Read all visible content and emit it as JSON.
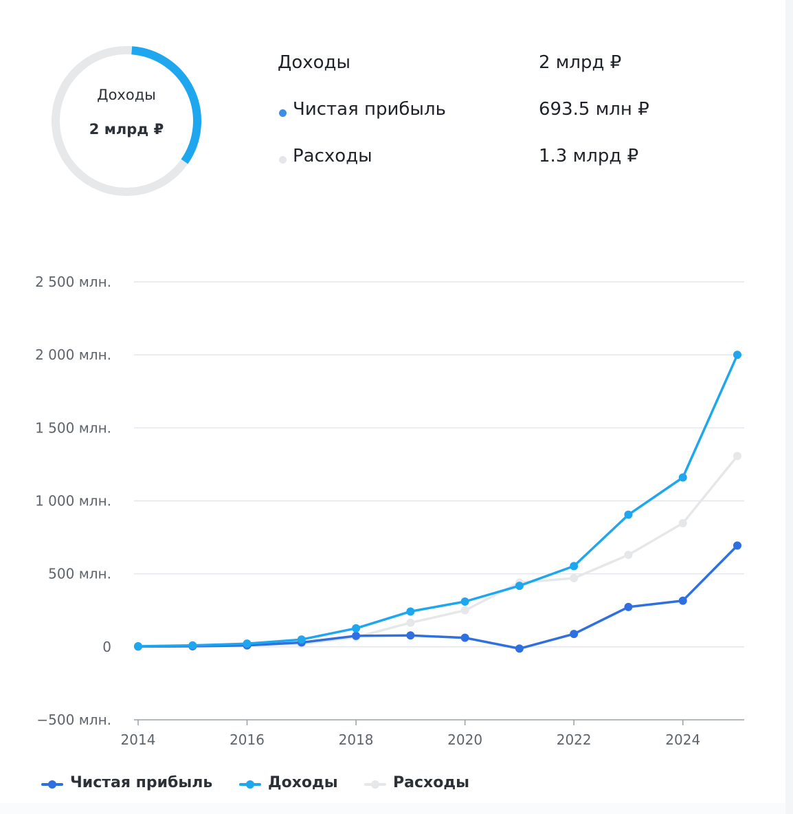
{
  "summary": {
    "donut_label": "Доходы",
    "donut_value": "2 млрд ₽",
    "donut_share": 0.347,
    "rows": [
      {
        "label": "Доходы",
        "value": "2 млрд ₽",
        "color": ""
      },
      {
        "label": "Чистая прибыль",
        "value": "693.5 млн ₽",
        "color": "#3d8fe6"
      },
      {
        "label": "Расходы",
        "value": "1.3 млрд ₽",
        "color": "#e4e6e9"
      }
    ]
  },
  "colors": {
    "net_profit": "#2f6fdf",
    "income": "#1ea6ef",
    "expenses": "#e6e7e9",
    "grid": "#e3e6ea",
    "donut_track": "#e7e8ea",
    "donut_fill": "#1ea6ef"
  },
  "chart_data": {
    "type": "line",
    "x": [
      2014,
      2015,
      2016,
      2017,
      2018,
      2019,
      2020,
      2021,
      2022,
      2023,
      2024,
      2025
    ],
    "xlim": [
      2014,
      2025
    ],
    "x_ticks": [
      2014,
      2016,
      2018,
      2020,
      2022,
      2024
    ],
    "x_tick_labels": [
      "2014",
      "2016",
      "2018",
      "2020",
      "2022",
      "2024"
    ],
    "ylim": [
      -500,
      2500
    ],
    "y_ticks": [
      -500,
      0,
      500,
      1000,
      1500,
      2000,
      2500
    ],
    "y_tick_labels": [
      "−500 млн.",
      "0",
      "500 млн.",
      "1 000 млн.",
      "1 500 млн.",
      "2 000 млн.",
      "2 500 млн."
    ],
    "grid": true,
    "legend_position": "bottom-left",
    "series": [
      {
        "name": "Чистая прибыль",
        "key": "net_profit",
        "values": [
          2,
          4,
          10,
          30,
          75,
          78,
          62,
          -12,
          88,
          273,
          316,
          694
        ]
      },
      {
        "name": "Доходы",
        "key": "income",
        "values": [
          4,
          10,
          22,
          50,
          127,
          242,
          310,
          418,
          553,
          905,
          1160,
          2000
        ]
      },
      {
        "name": "Расходы",
        "key": "expenses",
        "values": [
          2,
          6,
          12,
          20,
          66,
          165,
          250,
          440,
          470,
          630,
          847,
          1307
        ]
      }
    ]
  }
}
